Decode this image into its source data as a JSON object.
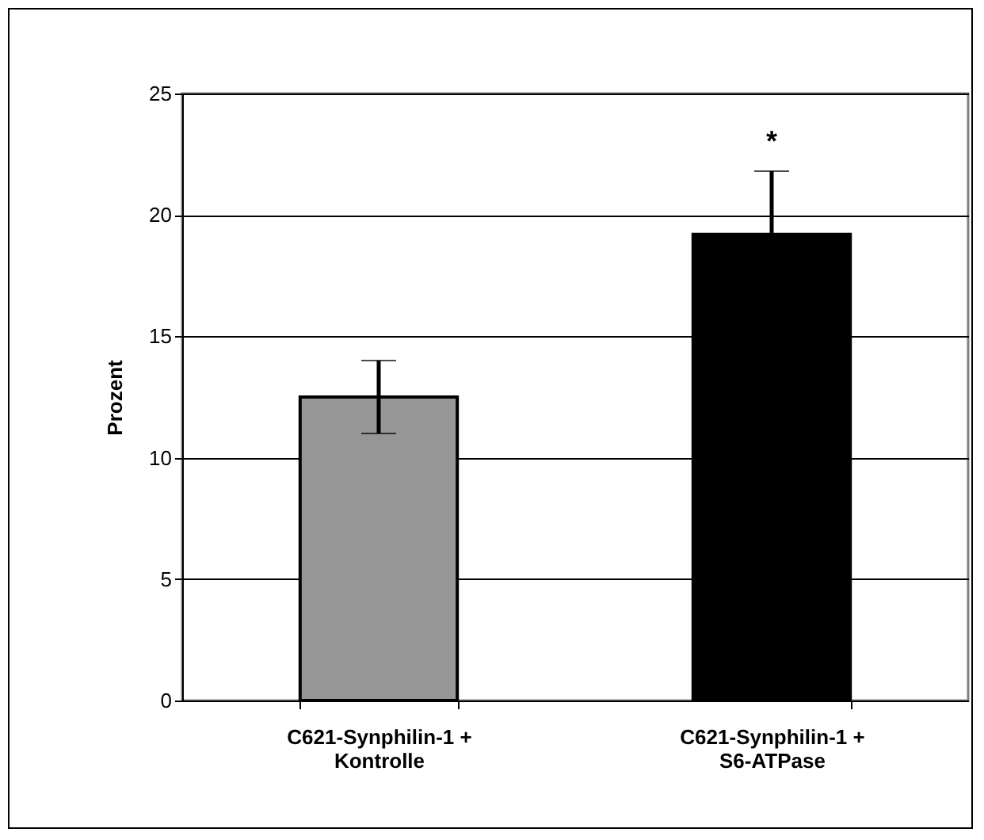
{
  "chart_data": {
    "type": "bar",
    "ylabel": "Prozent",
    "categories": [
      "C621-Synphilin-1 + Kontrolle",
      "C621-Synphilin-1 + S6-ATPase"
    ],
    "values": [
      12.5,
      19.2
    ],
    "colors": [
      "#969696",
      "#000000"
    ],
    "errors": [
      1.5,
      2.6
    ],
    "ylim": [
      0,
      25
    ],
    "yticks": [
      0,
      5,
      10,
      15,
      20,
      25
    ],
    "grid": "y",
    "annotations": [
      {
        "text": "*",
        "x": "C621-Synphilin-1 + S6-ATPase",
        "y": 21.8
      }
    ]
  }
}
